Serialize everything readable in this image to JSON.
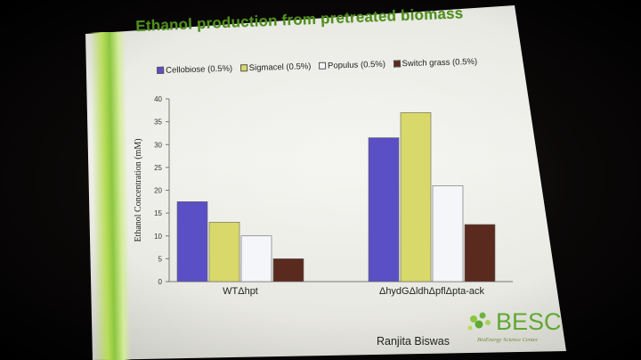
{
  "slide": {
    "title": "Ethanol production from pretreated biomass",
    "presenter": "Ranjita Biswas",
    "logo_text": "BESC",
    "logo_subtitle": "BioEnergy Science Center"
  },
  "colors": {
    "cellobiose": "#5a4fc4",
    "sigmacel": "#d9d86a",
    "populus": "#f4f6fa",
    "switch_grass": "#5a2a1e",
    "title": "#4f8f1d"
  },
  "chart_data": {
    "type": "bar",
    "title": "Ethanol production from pretreated biomass",
    "xlabel": "",
    "ylabel": "Ethanol Concentration (mM)",
    "ylim": [
      0,
      40
    ],
    "yticks": [
      0,
      5,
      10,
      15,
      20,
      25,
      30,
      35,
      40
    ],
    "categories": [
      "WTΔhpt",
      "ΔhydGΔldhΔpflΔpta-ack"
    ],
    "series": [
      {
        "name": "Cellobiose (0.5%)",
        "values": [
          17.5,
          31.5
        ]
      },
      {
        "name": "Sigmacel (0.5%)",
        "values": [
          13,
          37
        ]
      },
      {
        "name": "Populus (0.5%)",
        "values": [
          10,
          21
        ]
      },
      {
        "name": "Switch grass (0.5%)",
        "values": [
          5,
          12.5
        ]
      }
    ],
    "legend_position": "top",
    "grid": false
  }
}
